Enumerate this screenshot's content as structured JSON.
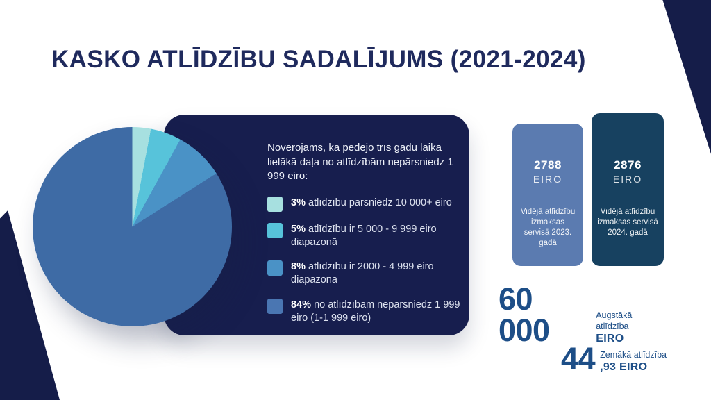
{
  "page": {
    "title": "KASKO ATLĪDZĪBU SADALĪJUMS (2021-2024)"
  },
  "colors": {
    "navy_wedge": "#151d49",
    "card_navy": "#171e4e",
    "title_navy": "#1f2a5d",
    "stat_blue": "#1d4e87"
  },
  "chart_data": [
    {
      "type": "pie",
      "title": "KASKO atlīdzību sadalījums (2021-2024)",
      "values": [
        3,
        5,
        8,
        84
      ],
      "labels": [
        "atlīdzību pārsniedz 10 000+ eiro",
        "atlīdzību ir 5 000 - 9 999 eiro diapazonā",
        "atlīdzību ir 2000 - 4 999 eiro diapazonā",
        "no atlīdzībām nepārsniedz 1 999 eiro (1-1 999 eiro)"
      ],
      "colors": [
        "#a7e0e0",
        "#57c3da",
        "#4a92c6",
        "#3e6ba5"
      ],
      "start_angle": "12 o'clock, clockwise",
      "legend_position": "card-right"
    },
    {
      "type": "bar",
      "categories": [
        "2023. gadā",
        "2024. gadā"
      ],
      "values": [
        2788,
        2876
      ],
      "unit": "EIRO",
      "series_label": "Vidējā atlīdzību izmaksas servisā",
      "colors": [
        "#5b7bb0",
        "#174160"
      ]
    }
  ],
  "card": {
    "intro": "Novērojams, ka pēdējo trīs gadu laikā lielākā daļa no atlīdzībām nepārsniedz 1 999 eiro:",
    "legend": [
      {
        "pct": "3%",
        "text": "atlīdzību pārsniedz 10 000+ eiro",
        "color": "#a7e0e0"
      },
      {
        "pct": "5%",
        "text": "atlīdzību ir 5 000 - 9 999 eiro diapazonā",
        "color": "#57c3da"
      },
      {
        "pct": "8%",
        "text": "atlīdzību ir 2000 - 4 999 eiro diapazonā",
        "color": "#4a92c6"
      },
      {
        "pct": "84%",
        "text": "no atlīdzībām nepārsniedz 1 999 eiro (1-1 999 eiro)",
        "color": "#4a76b2"
      }
    ]
  },
  "bars": [
    {
      "value": "2788",
      "currency": "EIRO",
      "label": "Vidējā atlīdzību izmaksas servisā 2023. gadā",
      "color": "#5b7bb0"
    },
    {
      "value": "2876",
      "currency": "EIRO",
      "label": "Vidējā atlīdzību izmaksas servisā 2024. gadā",
      "color": "#174160"
    }
  ],
  "stats": [
    {
      "value": "60 000",
      "label": "Augstākā atlīdzība",
      "unit": "EIRO"
    },
    {
      "value": "44",
      "label": "Zemākā atlīdzība",
      "unit": ",93 EIRO"
    }
  ]
}
